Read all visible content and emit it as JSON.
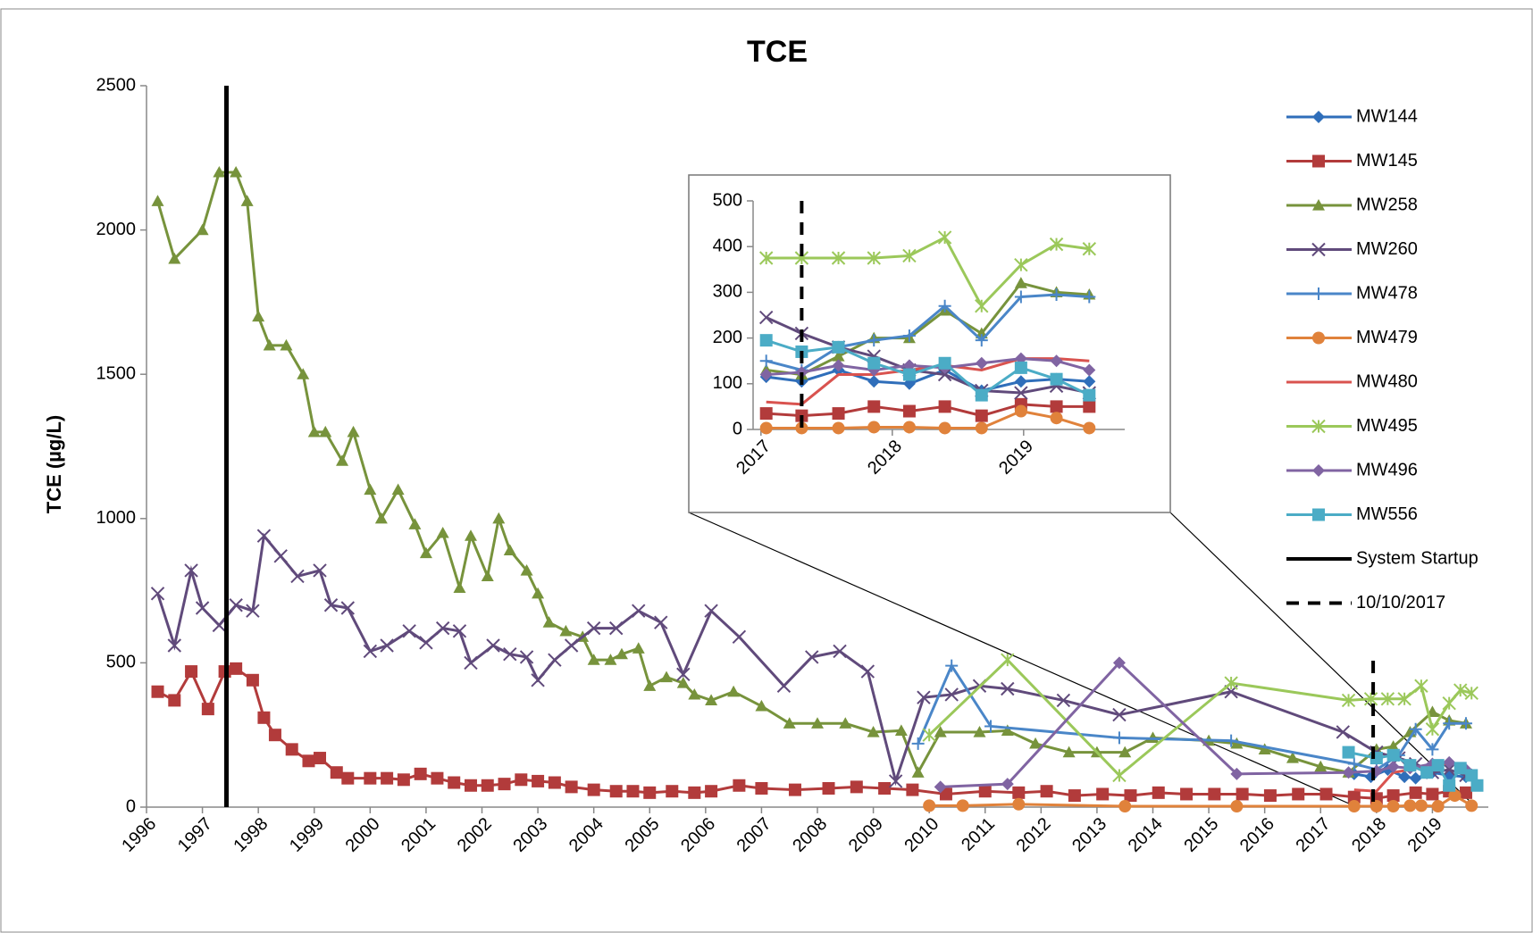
{
  "chart_data": [
    {
      "type": "line",
      "title": "TCE",
      "ylabel": "TCE (µg/L)",
      "xlim": [
        1996,
        2020
      ],
      "xticks": [
        1996,
        1997,
        1998,
        1999,
        2000,
        2001,
        2002,
        2003,
        2004,
        2005,
        2006,
        2007,
        2008,
        2009,
        2010,
        2011,
        2012,
        2013,
        2014,
        2015,
        2016,
        2017,
        2018,
        2019
      ],
      "ylim": [
        0,
        2500
      ],
      "yticks": [
        0,
        500,
        1000,
        1500,
        2000,
        2500
      ],
      "series": [
        {
          "name": "MW144",
          "color": "#2f6eba",
          "marker": "diamond",
          "x": [
            2017.6,
            2017.9,
            2018.2,
            2018.5,
            2018.7,
            2019.0,
            2019.3,
            2019.6
          ],
          "values": [
            115,
            105,
            130,
            105,
            100,
            120,
            110,
            105
          ]
        },
        {
          "name": "MW145",
          "color": "#b23b3b",
          "marker": "square",
          "x": [
            1996.2,
            1996.5,
            1996.8,
            1997.1,
            1997.4,
            1997.6,
            1997.9,
            1998.1,
            1998.3,
            1998.6,
            1998.9,
            1999.1,
            1999.4,
            1999.6,
            2000.0,
            2000.3,
            2000.6,
            2000.9,
            2001.2,
            2001.5,
            2001.8,
            2002.1,
            2002.4,
            2002.7,
            2003.0,
            2003.3,
            2003.6,
            2004.0,
            2004.4,
            2004.7,
            2005.0,
            2005.4,
            2005.8,
            2006.1,
            2006.6,
            2007.0,
            2007.6,
            2008.2,
            2008.7,
            2009.2,
            2009.7,
            2010.3,
            2011.0,
            2011.6,
            2012.1,
            2012.6,
            2013.1,
            2013.6,
            2014.1,
            2014.6,
            2015.1,
            2015.6,
            2016.1,
            2016.6,
            2017.1,
            2017.6,
            2018.0,
            2018.3,
            2018.7,
            2019.0,
            2019.3,
            2019.6
          ],
          "values": [
            400,
            370,
            470,
            340,
            470,
            480,
            440,
            310,
            250,
            200,
            160,
            170,
            120,
            100,
            100,
            100,
            95,
            115,
            100,
            85,
            75,
            75,
            80,
            95,
            90,
            85,
            70,
            60,
            55,
            55,
            50,
            55,
            50,
            55,
            75,
            65,
            60,
            65,
            70,
            65,
            60,
            45,
            55,
            50,
            55,
            40,
            45,
            40,
            50,
            45,
            45,
            45,
            40,
            45,
            45,
            35,
            30,
            40,
            50,
            45,
            55,
            50
          ]
        },
        {
          "name": "MW258",
          "color": "#77933c",
          "marker": "triangle",
          "x": [
            1996.2,
            1996.5,
            1997.0,
            1997.3,
            1997.6,
            1997.8,
            1998.0,
            1998.2,
            1998.5,
            1998.8,
            1999.0,
            1999.2,
            1999.5,
            1999.7,
            2000.0,
            2000.2,
            2000.5,
            2000.8,
            2001.0,
            2001.3,
            2001.6,
            2001.8,
            2002.1,
            2002.3,
            2002.5,
            2002.8,
            2003.0,
            2003.2,
            2003.5,
            2003.8,
            2004.0,
            2004.3,
            2004.5,
            2004.8,
            2005.0,
            2005.3,
            2005.6,
            2005.8,
            2006.1,
            2006.5,
            2007.0,
            2007.5,
            2008.0,
            2008.5,
            2009.0,
            2009.5,
            2009.8,
            2010.2,
            2010.9,
            2011.4,
            2011.9,
            2012.5,
            2013.0,
            2013.5,
            2014.0,
            2015.0,
            2015.5,
            2016.0,
            2016.5,
            2017.0,
            2017.5,
            2018.0,
            2018.3,
            2018.6,
            2019.0,
            2019.3,
            2019.6
          ],
          "values": [
            2100,
            1900,
            2000,
            2200,
            2200,
            2100,
            1700,
            1600,
            1600,
            1500,
            1300,
            1300,
            1200,
            1300,
            1100,
            1000,
            1100,
            980,
            880,
            950,
            760,
            940,
            800,
            1000,
            890,
            820,
            740,
            640,
            610,
            590,
            510,
            510,
            530,
            550,
            420,
            450,
            430,
            390,
            370,
            400,
            350,
            290,
            290,
            290,
            260,
            265,
            120,
            260,
            260,
            265,
            220,
            190,
            190,
            190,
            240,
            230,
            220,
            200,
            170,
            140,
            120,
            200,
            210,
            260,
            330,
            300,
            290
          ]
        },
        {
          "name": "MW260",
          "color": "#604a7b",
          "marker": "x",
          "x": [
            1996.2,
            1996.5,
            1996.8,
            1997.0,
            1997.3,
            1997.6,
            1997.9,
            1998.1,
            1998.4,
            1998.7,
            1999.1,
            1999.3,
            1999.6,
            2000.0,
            2000.3,
            2000.7,
            2001.0,
            2001.3,
            2001.6,
            2001.8,
            2002.2,
            2002.5,
            2002.8,
            2003.0,
            2003.3,
            2003.6,
            2004.0,
            2004.4,
            2004.8,
            2005.2,
            2005.6,
            2006.1,
            2006.6,
            2007.4,
            2007.9,
            2008.4,
            2008.9,
            2009.4,
            2009.9,
            2010.4,
            2010.9,
            2011.4,
            2012.4,
            2013.4,
            2015.4,
            2017.4,
            2018.0,
            2018.4,
            2018.7,
            2019.0,
            2019.3,
            2019.6
          ],
          "values": [
            740,
            560,
            820,
            690,
            630,
            700,
            680,
            940,
            870,
            800,
            820,
            700,
            690,
            540,
            560,
            610,
            570,
            620,
            610,
            500,
            560,
            530,
            520,
            440,
            510,
            560,
            620,
            620,
            680,
            640,
            460,
            680,
            590,
            420,
            520,
            540,
            470,
            90,
            380,
            390,
            420,
            410,
            370,
            320,
            400,
            260,
            190,
            170,
            150,
            120,
            130,
            110
          ]
        },
        {
          "name": "MW478",
          "color": "#4a86c8",
          "marker": "plus",
          "x": [
            2009.8,
            2010.4,
            2011.1,
            2013.4,
            2015.4,
            2017.6,
            2018.0,
            2018.4,
            2018.7,
            2019.0,
            2019.3,
            2019.6
          ],
          "values": [
            220,
            490,
            280,
            240,
            230,
            150,
            130,
            180,
            270,
            200,
            290,
            290
          ]
        },
        {
          "name": "MW479",
          "color": "#e0823b",
          "marker": "circle",
          "x": [
            2010.0,
            2010.6,
            2011.6,
            2013.5,
            2015.5,
            2017.6,
            2018.0,
            2018.3,
            2018.6,
            2018.8,
            2019.1,
            2019.4,
            2019.7
          ],
          "values": [
            5,
            5,
            10,
            3,
            3,
            3,
            3,
            3,
            5,
            5,
            3,
            40,
            5
          ]
        },
        {
          "name": "MW480",
          "color": "#d9534f",
          "marker": "none",
          "x": [
            2017.6,
            2018.0,
            2018.3,
            2018.6,
            2019.0,
            2019.3,
            2019.6
          ],
          "values": [
            60,
            55,
            120,
            130,
            150,
            150,
            150
          ]
        },
        {
          "name": "MW495",
          "color": "#9bc85a",
          "marker": "asterisk",
          "x": [
            2010.0,
            2011.4,
            2013.4,
            2015.4,
            2017.5,
            2017.9,
            2018.2,
            2018.5,
            2018.8,
            2019.0,
            2019.3,
            2019.5,
            2019.7
          ],
          "values": [
            250,
            510,
            110,
            430,
            370,
            375,
            375,
            375,
            420,
            270,
            360,
            405,
            395
          ]
        },
        {
          "name": "MW496",
          "color": "#8064a2",
          "marker": "diamond",
          "x": [
            2010.2,
            2011.4,
            2013.4,
            2015.5,
            2017.5,
            2018.0,
            2018.3,
            2018.6,
            2019.0,
            2019.3,
            2019.6
          ],
          "values": [
            70,
            80,
            500,
            115,
            120,
            125,
            140,
            135,
            150,
            155,
            130
          ]
        },
        {
          "name": "MW556",
          "color": "#4bacc6",
          "marker": "square",
          "x": [
            2017.5,
            2018.0,
            2018.3,
            2018.6,
            2018.9,
            2019.1,
            2019.3,
            2019.5,
            2019.7,
            2019.8
          ],
          "values": [
            190,
            170,
            180,
            145,
            120,
            145,
            75,
            135,
            110,
            75
          ]
        }
      ],
      "vlines": [
        {
          "name": "System Startup",
          "x": 1997.43,
          "style": "solid"
        },
        {
          "name": "10/10/2017",
          "x": 2017.94,
          "style": "dashed"
        }
      ]
    },
    {
      "type": "line",
      "x": [
        2017.04,
        2017.31,
        2017.59,
        2017.86,
        2018.13,
        2018.4,
        2018.68,
        2018.98,
        2019.25,
        2019.5
      ],
      "xlim": [
        2016.94,
        2019.77
      ],
      "xticks": [
        2017,
        2018,
        2019
      ],
      "ylim": [
        0,
        500
      ],
      "yticks": [
        0,
        100,
        200,
        300,
        400,
        500
      ],
      "series": [
        {
          "color": "#2f6eba",
          "marker": "diamond",
          "values": [
            115,
            105,
            130,
            105,
            100,
            130,
            85,
            105,
            110,
            105
          ]
        },
        {
          "color": "#b23b3b",
          "marker": "square",
          "values": [
            35,
            30,
            35,
            50,
            40,
            50,
            30,
            55,
            50,
            50
          ]
        },
        {
          "color": "#77933c",
          "marker": "triangle",
          "values": [
            130,
            120,
            160,
            200,
            200,
            260,
            210,
            320,
            300,
            295
          ]
        },
        {
          "color": "#604a7b",
          "marker": "x",
          "values": [
            245,
            210,
            180,
            160,
            130,
            120,
            85,
            80,
            95,
            80
          ]
        },
        {
          "color": "#4a86c8",
          "marker": "plus",
          "values": [
            150,
            130,
            180,
            195,
            205,
            270,
            195,
            290,
            295,
            290
          ]
        },
        {
          "color": "#e0823b",
          "marker": "circle",
          "values": [
            3,
            3,
            3,
            5,
            5,
            3,
            3,
            40,
            25,
            3
          ]
        },
        {
          "color": "#d9534f",
          "marker": "none",
          "values": [
            60,
            55,
            120,
            120,
            130,
            140,
            130,
            155,
            155,
            150
          ]
        },
        {
          "color": "#9bc85a",
          "marker": "asterisk",
          "values": [
            375,
            375,
            375,
            375,
            380,
            420,
            270,
            360,
            405,
            395
          ]
        },
        {
          "color": "#8064a2",
          "marker": "diamond",
          "values": [
            120,
            125,
            140,
            130,
            140,
            135,
            145,
            155,
            150,
            130
          ]
        },
        {
          "color": "#4bacc6",
          "marker": "square",
          "values": [
            195,
            170,
            180,
            145,
            120,
            145,
            75,
            135,
            110,
            75
          ]
        }
      ],
      "vlines": [
        {
          "x": 2017.31,
          "style": "dashed"
        }
      ]
    }
  ]
}
